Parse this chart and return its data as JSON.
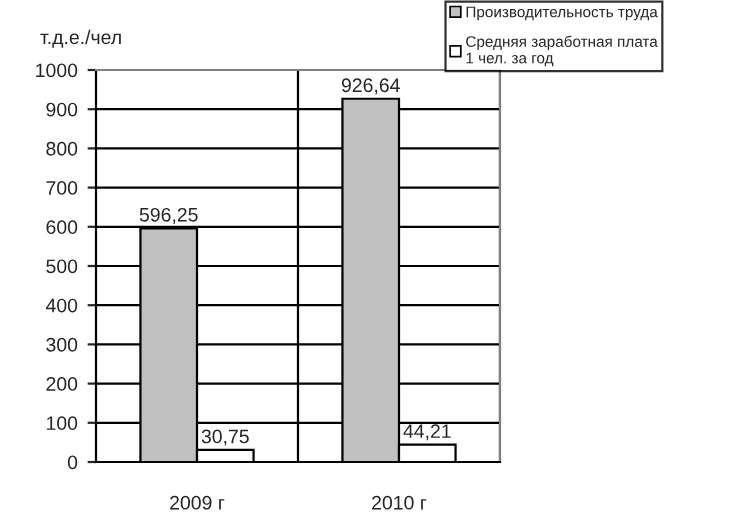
{
  "chart_data": {
    "type": "bar",
    "ylabel": "т.д.е./чел",
    "categories": [
      "2009 г",
      "2010 г"
    ],
    "series": [
      {
        "name": "Производительность труда",
        "color": "#c0c0c0",
        "values": [
          596.25,
          926.64
        ],
        "value_labels": [
          "596,25",
          "926,64"
        ]
      },
      {
        "name": "Средняя заработная плата\n1 чел. за год",
        "color": "#ffffff",
        "values": [
          30.75,
          44.21
        ],
        "value_labels": [
          "30,75",
          "44,21"
        ]
      }
    ],
    "ylim": [
      0,
      1000
    ],
    "yticks": [
      0,
      100,
      200,
      300,
      400,
      500,
      600,
      700,
      800,
      900,
      1000
    ],
    "grid": true,
    "legend": "top right"
  }
}
